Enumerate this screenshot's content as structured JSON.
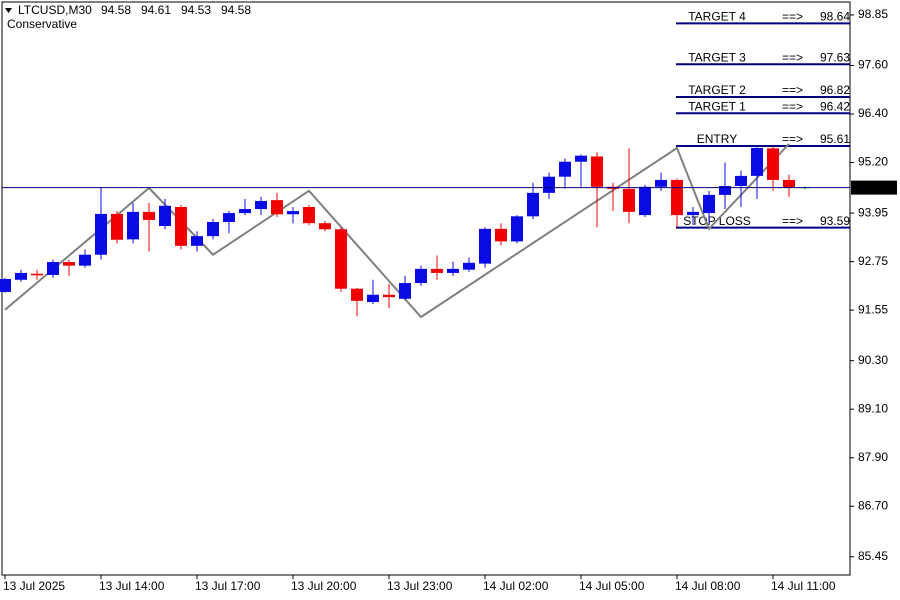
{
  "chart_data": {
    "type": "candlestick",
    "title": "LTCUSD,M30",
    "subtitle": "Conservative",
    "categories": [
      "13 Jul 2025",
      null,
      null,
      null,
      null,
      null,
      "13 Jul 14:00",
      null,
      null,
      null,
      null,
      null,
      "13 Jul 17:00",
      null,
      null,
      null,
      null,
      null,
      "13 Jul 20:00",
      null,
      null,
      null,
      null,
      null,
      "13 Jul 23:00",
      null,
      null,
      null,
      null,
      null,
      "14 Jul 02:00",
      null,
      null,
      null,
      null,
      null,
      "14 Jul 05:00",
      null,
      null,
      null,
      null,
      null,
      "14 Jul 08:00",
      null,
      null,
      null,
      null,
      null,
      "14 Jul 11:00",
      null,
      null
    ],
    "series": {
      "open": [
        92.0,
        92.3,
        92.45,
        92.42,
        92.74,
        92.65,
        92.92,
        93.93,
        93.3,
        93.98,
        93.63,
        94.1,
        93.14,
        93.38,
        93.73,
        93.95,
        94.05,
        94.27,
        93.92,
        94.1,
        93.7,
        93.55,
        92.08,
        91.75,
        91.93,
        91.83,
        92.22,
        92.57,
        92.47,
        92.55,
        92.7,
        93.56,
        93.25,
        93.87,
        94.45,
        94.85,
        95.22,
        95.35,
        94.6,
        94.55,
        93.9,
        94.6,
        94.77,
        93.9,
        93.95,
        94.4,
        94.62,
        94.87,
        95.55,
        94.77,
        94.58
      ],
      "high": [
        92.35,
        92.55,
        92.55,
        92.8,
        92.8,
        93.05,
        94.6,
        94.0,
        94.2,
        94.2,
        94.3,
        94.15,
        93.5,
        93.8,
        94.0,
        94.3,
        94.35,
        94.45,
        94.1,
        94.15,
        93.75,
        93.6,
        92.1,
        92.3,
        92.2,
        92.4,
        92.65,
        92.9,
        92.75,
        92.85,
        93.6,
        93.7,
        93.9,
        94.7,
        94.95,
        95.3,
        95.4,
        95.45,
        94.7,
        95.55,
        94.65,
        94.95,
        94.8,
        94.1,
        94.5,
        95.2,
        95.0,
        95.6,
        95.6,
        94.9,
        94.61
      ],
      "low": [
        91.98,
        92.25,
        92.3,
        92.35,
        92.4,
        92.6,
        92.8,
        93.2,
        93.2,
        93.0,
        93.55,
        93.05,
        93.0,
        93.3,
        93.45,
        93.9,
        93.9,
        93.85,
        93.7,
        93.65,
        93.5,
        92.0,
        91.4,
        91.7,
        91.6,
        91.8,
        92.15,
        92.3,
        92.4,
        92.5,
        92.6,
        93.15,
        93.2,
        93.8,
        94.3,
        94.55,
        94.6,
        93.6,
        94.0,
        93.7,
        93.85,
        94.5,
        93.6,
        93.65,
        93.7,
        94.05,
        94.1,
        94.3,
        94.5,
        94.35,
        94.53
      ],
      "close": [
        92.32,
        92.47,
        92.41,
        92.74,
        92.65,
        92.92,
        93.93,
        93.29,
        93.98,
        93.78,
        94.13,
        93.14,
        93.38,
        93.73,
        93.95,
        94.05,
        94.25,
        93.92,
        94.0,
        93.7,
        93.55,
        92.08,
        91.78,
        91.93,
        91.87,
        92.22,
        92.57,
        92.47,
        92.57,
        92.72,
        93.56,
        93.25,
        93.87,
        94.45,
        94.85,
        95.22,
        95.37,
        94.6,
        94.55,
        93.98,
        94.6,
        94.77,
        93.9,
        93.98,
        94.4,
        94.62,
        94.87,
        95.56,
        94.77,
        94.58,
        94.58
      ]
    },
    "up_color": "#0a0ae6",
    "down_color": "#f00000",
    "doji_color": "#00c000",
    "zigzag": {
      "color": "#7f7f7f",
      "x": [
        0,
        9,
        13,
        19,
        26,
        42,
        44,
        49
      ],
      "values": [
        91.56,
        94.57,
        92.92,
        94.5,
        91.38,
        95.56,
        93.56,
        95.66
      ]
    },
    "levels_arrow": "==>",
    "levels_color": "#000080",
    "levels": [
      {
        "label": "TARGET 4",
        "value": 98.64
      },
      {
        "label": "TARGET 3",
        "value": 97.63
      },
      {
        "label": "TARGET 2",
        "value": 96.82
      },
      {
        "label": "TARGET 1",
        "value": 96.42
      },
      {
        "label": "ENTRY",
        "value": 95.61
      },
      {
        "label": "STOP LOSS",
        "value": 93.59
      }
    ],
    "ylim": [
      85.0,
      99.17
    ],
    "yticks": [
      98.85,
      {
        "value": 97.6,
        "label": "97.60"
      },
      {
        "value": 96.4,
        "label": "96.40"
      },
      {
        "value": 95.2,
        "label": "95.20"
      },
      93.95,
      92.75,
      91.55,
      {
        "value": 90.3,
        "label": "90.30"
      },
      {
        "value": 89.1,
        "label": "89.10"
      },
      {
        "value": 87.9,
        "label": "87.90"
      },
      {
        "value": 86.7,
        "label": "86.70"
      },
      85.45
    ],
    "grid": false
  }
}
